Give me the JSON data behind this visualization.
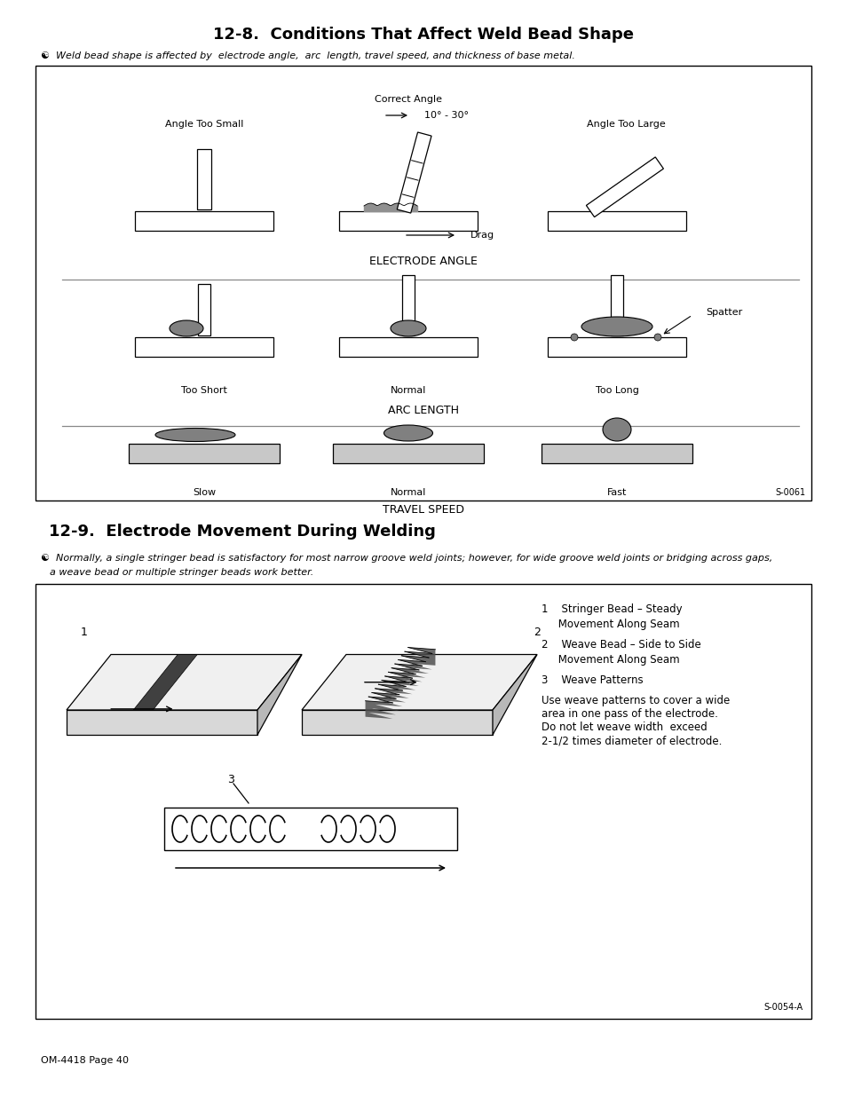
{
  "page_bg": "#ffffff",
  "title1": "12-8.  Conditions That Affect Weld Bead Shape",
  "title2": "12-9.  Electrode Movement During Welding",
  "subtitle1": "Weld bead shape is affected by  electrode angle,  arc  length, travel speed, and thickness of base metal.",
  "subtitle2a": "Normally, a single stringer bead is satisfactory for most narrow groove weld joints; however, for wide groove weld joints or bridging across gaps,",
  "subtitle2b": "a weave bead or multiple stringer beads work better.",
  "box1_label": "ELECTRODE ANGLE",
  "box2_label": "ARC LENGTH",
  "box3_label": "TRAVEL SPEED",
  "angle_too_small": "Angle Too Small",
  "correct_angle": "Correct Angle",
  "angle_range": "10° - 30°",
  "angle_too_large": "Angle Too Large",
  "drag_label": "Drag",
  "too_short": "Too Short",
  "normal_arc": "Normal",
  "too_long": "Too Long",
  "spatter": "Spatter",
  "slow": "Slow",
  "normal_ts": "Normal",
  "fast": "Fast",
  "footer": "OM-4418 Page 40",
  "s_code1": "S-0061",
  "s_code2": "S-0054-A",
  "leg1a": "1    Stringer Bead – Steady",
  "leg1b": "     Movement Along Seam",
  "leg2a": "2    Weave Bead – Side to Side",
  "leg2b": "     Movement Along Seam",
  "leg3": "3    Weave Patterns",
  "leg4a": "Use weave patterns to cover a wide",
  "leg4b": "area in one pass of the electrode.",
  "leg4c": "Do not let weave width  exceed",
  "leg4d": "2-1/2 times diameter of electrode."
}
